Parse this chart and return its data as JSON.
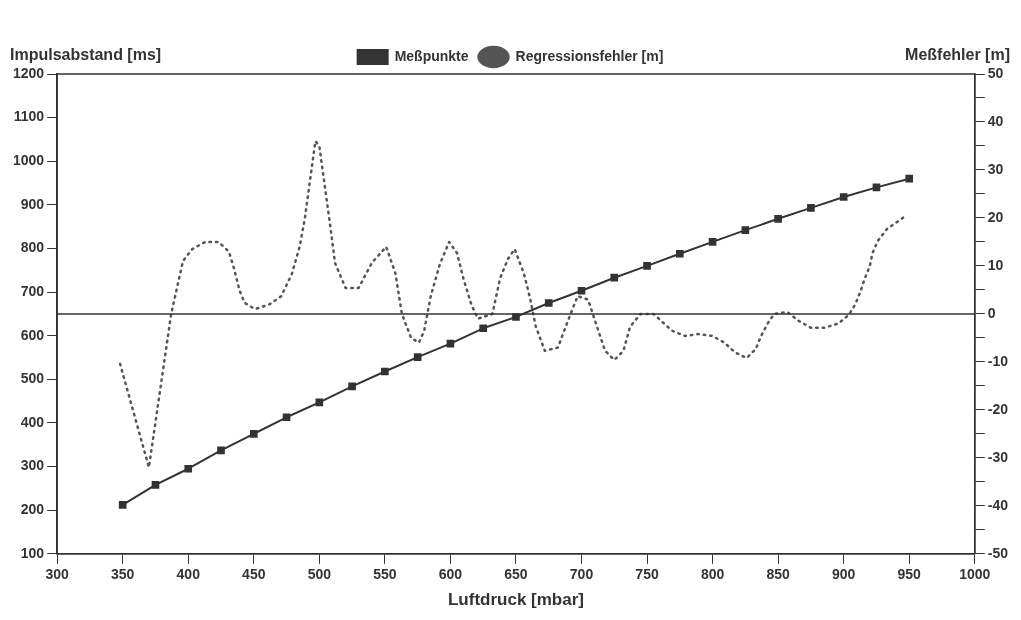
{
  "chart_data": {
    "type": "line",
    "xlabel": "Luftdruck [mbar]",
    "ylabel": "Impulsabstand [ms]",
    "y2label": "Meßfehler [m]",
    "xlim": [
      300,
      1000
    ],
    "xticks": [
      300,
      350,
      400,
      450,
      500,
      550,
      600,
      650,
      700,
      750,
      800,
      850,
      900,
      950,
      1000
    ],
    "ylim": [
      100,
      1200
    ],
    "yticks": [
      100,
      200,
      300,
      400,
      500,
      600,
      700,
      800,
      900,
      1000,
      1100,
      1200
    ],
    "y2lim": [
      -50,
      50
    ],
    "y2ticks": [
      -50,
      {
        "value": -45,
        "label": null
      },
      -40,
      {
        "value": -35,
        "label": null
      },
      -30,
      {
        "value": -25,
        "label": null
      },
      -20,
      {
        "value": -15,
        "label": null
      },
      -10,
      {
        "value": -5,
        "label": null
      },
      0,
      {
        "value": 5,
        "label": null
      },
      10,
      {
        "value": 15,
        "label": null
      },
      20,
      {
        "value": 25,
        "label": null
      },
      30,
      {
        "value": 35,
        "label": null
      },
      40,
      {
        "value": 45,
        "label": null
      },
      50
    ],
    "grid": false,
    "legend": "top",
    "ref_lines": [
      {
        "axis": "y2",
        "value": 0,
        "color": "#333333"
      }
    ],
    "series": [
      {
        "name": "Meßpunkte",
        "color": "#333333",
        "marker": "square",
        "line_style": "solid",
        "x": [
          350,
          375,
          400,
          425,
          450,
          475,
          500,
          525,
          550,
          575,
          600,
          625,
          650,
          675,
          700,
          725,
          750,
          775,
          800,
          825,
          850,
          875,
          900,
          925,
          950
        ],
        "values": [
          212,
          258,
          295,
          337,
          375,
          413,
          447,
          484,
          518,
          551,
          582,
          617,
          643,
          675,
          703,
          733,
          760,
          788,
          815,
          842,
          868,
          893,
          918,
          940,
          960
        ]
      },
      {
        "name": "Regressionsfehler [m]",
        "color": "#555555",
        "axis": "y2",
        "marker": "none",
        "line_style": "dotted",
        "x": [
          348,
          370,
          387,
          396,
          403,
          413,
          423,
          431,
          435,
          439,
          443,
          451,
          462,
          471,
          479,
          485,
          489,
          493,
          497,
          500,
          504,
          508,
          512,
          520,
          530,
          540,
          551,
          558,
          563,
          570,
          576,
          580,
          585,
          592,
          599,
          605,
          610,
          616,
          621,
          632,
          638,
          644,
          649,
          656,
          661,
          665,
          672,
          682,
          689,
          697,
          705,
          711,
          718,
          725,
          732,
          737,
          745,
          755,
          761,
          769,
          779,
          789,
          800,
          809,
          817,
          826,
          833,
          837,
          842,
          847,
          857,
          866,
          875,
          885,
          896,
          904,
          909,
          913,
          916,
          920,
          922,
          926,
          933,
          942,
          946
        ],
        "values": [
          -10.4,
          -32,
          0,
          11,
          13.5,
          15,
          15,
          13,
          9.4,
          5,
          2.3,
          1,
          2,
          3.7,
          8.3,
          14,
          20,
          28,
          36,
          35,
          27,
          19,
          10.6,
          5.4,
          5.4,
          10.6,
          14,
          8.5,
          0,
          -5,
          -6,
          -3.5,
          3.7,
          10.4,
          15,
          12.7,
          7.3,
          1.9,
          -1,
          0,
          7.5,
          11.5,
          13.5,
          8.5,
          3,
          -2.5,
          -7.7,
          -7,
          -1.9,
          3.7,
          3,
          -2,
          -7.7,
          -9.6,
          -7.7,
          -2.7,
          0,
          0,
          -1.5,
          -3.5,
          -4.6,
          -4.2,
          -4.6,
          -6,
          -8,
          -9.2,
          -7.3,
          -4.6,
          -2,
          0,
          0.4,
          -1.5,
          -2.9,
          -2.9,
          -2,
          -0.2,
          2.1,
          4.8,
          7.3,
          10,
          12.7,
          15.2,
          17.7,
          19.4,
          20.2
        ]
      }
    ]
  }
}
